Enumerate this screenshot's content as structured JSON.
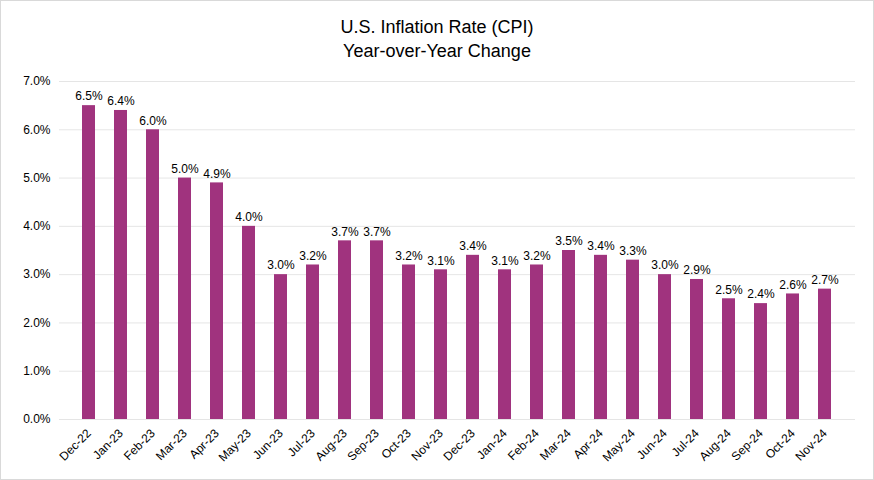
{
  "chart_data": {
    "type": "bar",
    "title": "U.S. Inflation Rate (CPI)",
    "subtitle": "Year-over-Year Change",
    "categories": [
      "Dec-22",
      "Jan-23",
      "Feb-23",
      "Mar-23",
      "Apr-23",
      "May-23",
      "Jun-23",
      "Jul-23",
      "Aug-23",
      "Sep-23",
      "Oct-23",
      "Nov-23",
      "Dec-23",
      "Jan-24",
      "Feb-24",
      "Mar-24",
      "Apr-24",
      "May-24",
      "Jun-24",
      "Jul-24",
      "Aug-24",
      "Sep-24",
      "Oct-24",
      "Nov-24"
    ],
    "values": [
      6.5,
      6.4,
      6.0,
      5.0,
      4.9,
      4.0,
      3.0,
      3.2,
      3.7,
      3.7,
      3.2,
      3.1,
      3.4,
      3.1,
      3.2,
      3.5,
      3.4,
      3.3,
      3.0,
      2.9,
      2.5,
      2.4,
      2.6,
      2.7
    ],
    "value_labels": [
      "6.5%",
      "6.4%",
      "6.0%",
      "5.0%",
      "4.9%",
      "4.0%",
      "3.0%",
      "3.2%",
      "3.7%",
      "3.7%",
      "3.2%",
      "3.1%",
      "3.4%",
      "3.1%",
      "3.2%",
      "3.5%",
      "3.4%",
      "3.3%",
      "3.0%",
      "2.9%",
      "2.5%",
      "2.4%",
      "2.6%",
      "2.7%"
    ],
    "color": "#a0337e",
    "ylim": [
      0,
      7
    ],
    "yticks": [
      {
        "value": 0,
        "label": "0.0%"
      },
      {
        "value": 1,
        "label": "1.0%"
      },
      {
        "value": 2,
        "label": "2.0%"
      },
      {
        "value": 3,
        "label": "3.0%"
      },
      {
        "value": 4,
        "label": "4.0%"
      },
      {
        "value": 5,
        "label": "5.0%"
      },
      {
        "value": 6,
        "label": "6.0%"
      },
      {
        "value": 7,
        "label": "7.0%"
      }
    ],
    "grid": true,
    "data_labels": true
  }
}
